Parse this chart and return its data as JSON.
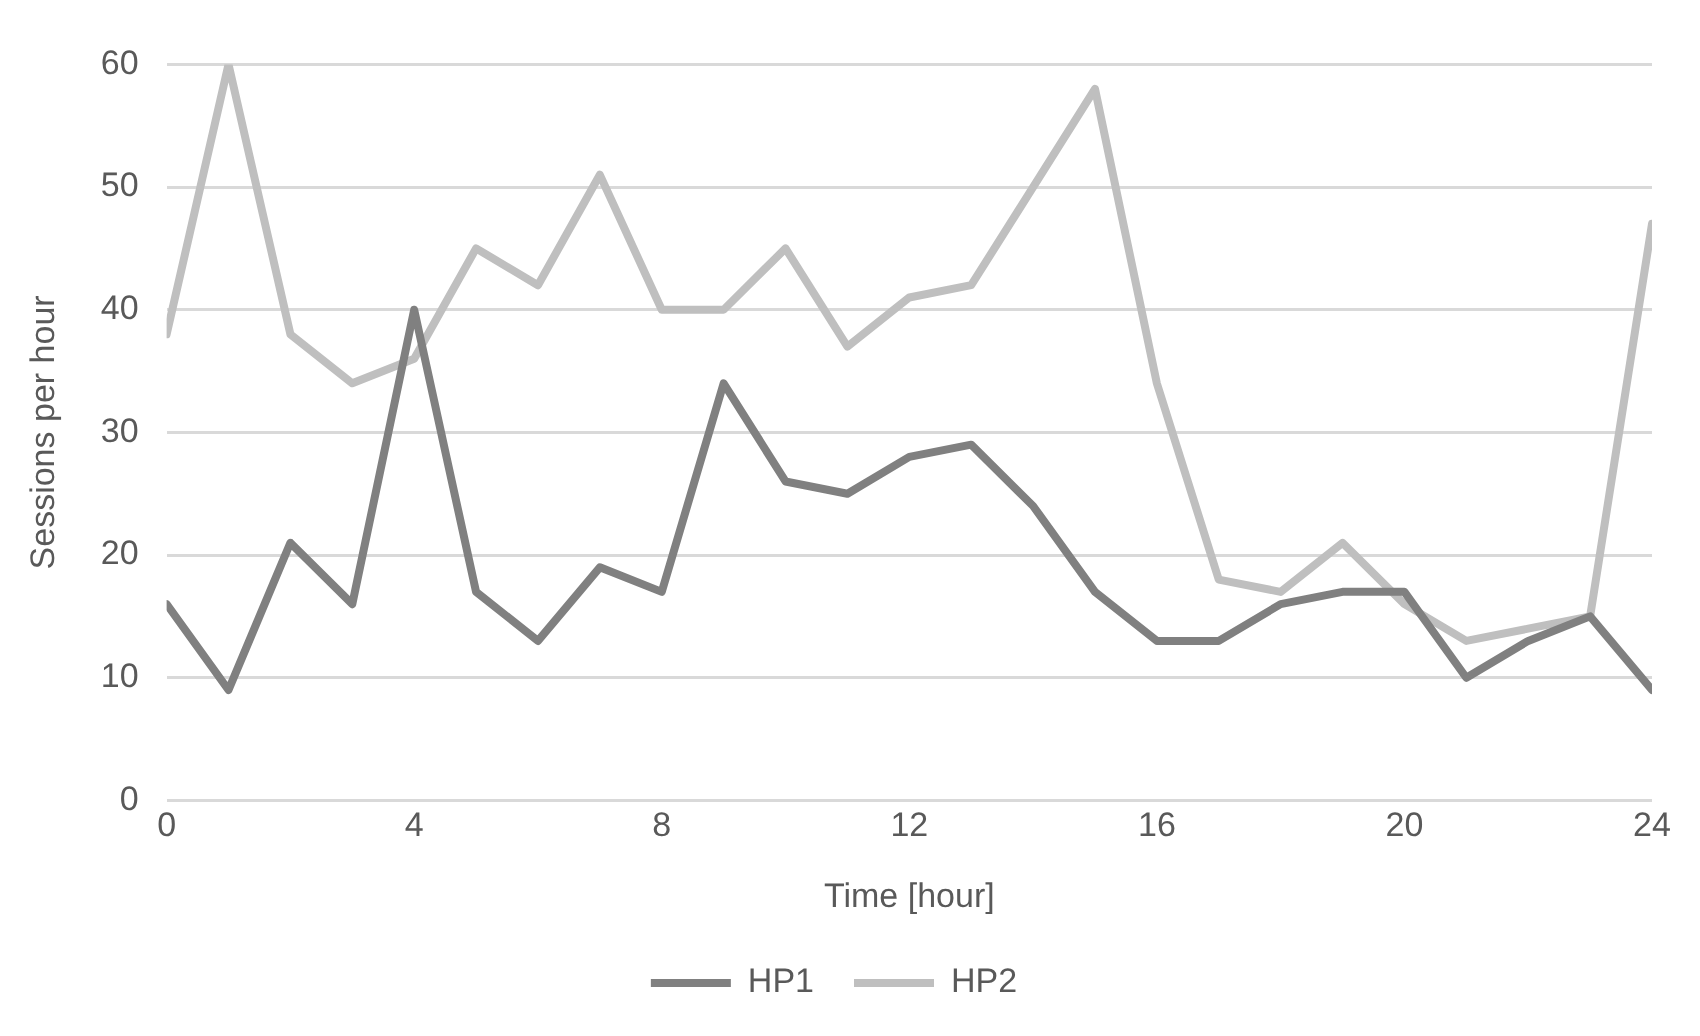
{
  "chart_data": {
    "type": "line",
    "xlabel": "Time [hour]",
    "ylabel": "Sessions per hour",
    "x": [
      0,
      1,
      2,
      3,
      4,
      5,
      6,
      7,
      8,
      9,
      10,
      11,
      12,
      13,
      14,
      15,
      16,
      17,
      18,
      19,
      20,
      21,
      22,
      23,
      24
    ],
    "series": [
      {
        "name": "HP1",
        "color": "#808080",
        "values": [
          16,
          9,
          21,
          16,
          40,
          17,
          13,
          19,
          17,
          34,
          26,
          25,
          28,
          29,
          24,
          17,
          13,
          13,
          16,
          17,
          17,
          10,
          13,
          15,
          9
        ]
      },
      {
        "name": "HP2",
        "color": "#bfbfbf",
        "values": [
          38,
          60,
          38,
          34,
          36,
          45,
          42,
          51,
          40,
          40,
          45,
          37,
          41,
          42,
          50,
          58,
          34,
          18,
          17,
          21,
          16,
          13,
          14,
          15,
          47
        ]
      }
    ],
    "xlim": [
      0,
      24
    ],
    "xticks": [
      0,
      4,
      8,
      12,
      16,
      20,
      24
    ],
    "ylim": [
      0,
      60
    ],
    "yticks": [
      0,
      10,
      20,
      30,
      40,
      50,
      60
    ],
    "grid": "y",
    "legend": "bottom",
    "marker": "none",
    "line_style": "solid"
  }
}
